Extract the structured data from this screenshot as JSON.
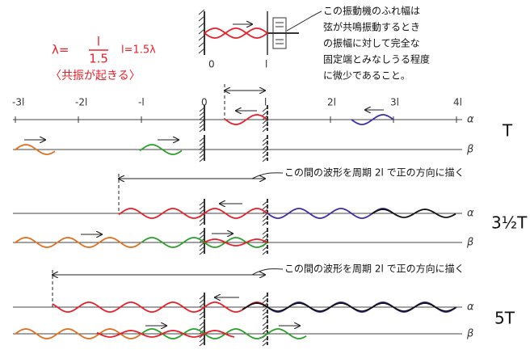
{
  "formula": {
    "lhs": "λ=",
    "numerator": "l",
    "denominator": "1.5",
    "length": "l=1.5λ",
    "note": "〈共振が起きる〉"
  },
  "top_diagram": {
    "origin_label": "0",
    "end_label": "l"
  },
  "annotation": {
    "lines": [
      "この振動機のふれ幅は",
      "弦が共鳴振動するとき",
      "の振幅に対して完全な",
      "固定端とみなしうる程度",
      "に微少であること。"
    ]
  },
  "axis_labels": [
    "-3l",
    "-2l",
    "-l",
    "0",
    "l",
    "2l",
    "3l",
    "4l"
  ],
  "rows": [
    {
      "time_label": "T",
      "alpha_label": "α",
      "beta_label": "β"
    },
    {
      "time_label": "3½T",
      "alpha_label": "α",
      "beta_label": "β"
    },
    {
      "time_label": "5T",
      "alpha_label": "α",
      "beta_label": "β"
    }
  ],
  "instructions": [
    "この間の波形を周期 2l で正の方向に描く",
    "この間の波形を周期 2l で正の方向に描く"
  ]
}
